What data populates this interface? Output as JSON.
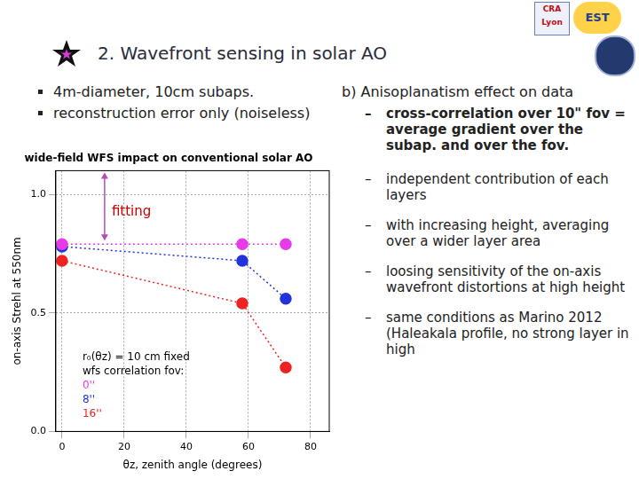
{
  "header": {
    "title": "2. Wavefront sensing in solar AO",
    "logos": [
      "CRA Lyon",
      "EST"
    ]
  },
  "left_bullets": [
    "4m-diameter, 10cm subaps.",
    "reconstruction error only (noiseless)"
  ],
  "right_column": {
    "heading": "b) Anisoplanatism effect on data",
    "items": [
      "cross-correlation over 10\" fov = average gradient over the subap. and over the fov.",
      "independent contribution of each layers",
      "with increasing height, averaging over a wider layer area",
      "loosing sensitivity of the on-axis wavefront distortions at high height",
      "same conditions as Marino 2012 (Haleakala profile, no strong layer in high"
    ]
  },
  "chart_data": {
    "type": "line",
    "title": "wide-field WFS impact on conventional solar AO",
    "x_label": "θz, zenith angle (degrees)",
    "y_label": "on-axis Strehl at 550nm",
    "annotation": "fitting",
    "legend_title": [
      "r₀(θz) = 10 cm fixed",
      "wfs correlation fov:"
    ],
    "x": [
      0,
      58,
      72
    ],
    "series": [
      {
        "name": "0''",
        "color": "#e83be8",
        "values": [
          0.79,
          0.79,
          0.79
        ]
      },
      {
        "name": "8''",
        "color": "#2233dd",
        "values": [
          0.78,
          0.72,
          0.56
        ]
      },
      {
        "name": "16''",
        "color": "#ee2222",
        "values": [
          0.72,
          0.54,
          0.27
        ]
      }
    ],
    "xlim": [
      -2,
      86
    ],
    "xticks": [
      0,
      20,
      40,
      60,
      80
    ],
    "ylim": [
      0,
      1.1
    ],
    "yticks": [
      {
        "value": 0,
        "label": "0.0"
      },
      {
        "value": 0.5,
        "label": "0.5"
      },
      {
        "value": 1,
        "label": "1.0"
      }
    ],
    "grid": true,
    "legend": "lower left",
    "marker": "circle",
    "line_style": "dotted"
  }
}
